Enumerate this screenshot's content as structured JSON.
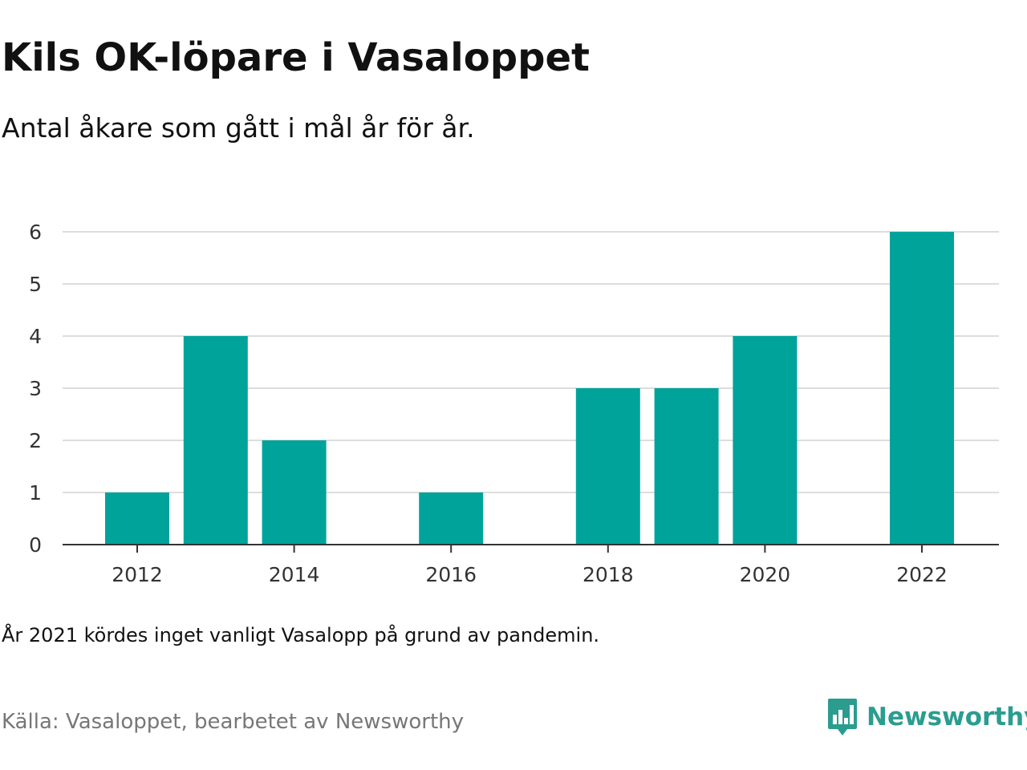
{
  "header": {
    "title": "Kils OK-löpare i Vasaloppet",
    "subtitle": "Antal åkare som gått i mål år för år."
  },
  "footer": {
    "note": "År 2021 kördes inget vanligt Vasalopp på grund av pandemin.",
    "source": "Källa: Vasaloppet, bearbetet av Newsworthy",
    "logo_text": "Newsworthy",
    "logo_icon": "bar-chart-speech-bubble-icon"
  },
  "colors": {
    "bar": "#00a39a",
    "grid": "#dddddd",
    "axis": "#333333",
    "brand": "#2a9d8f"
  },
  "chart_data": {
    "type": "bar",
    "title": "Kils OK-löpare i Vasaloppet",
    "subtitle": "Antal åkare som gått i mål år för år.",
    "x": [
      2012,
      2013,
      2014,
      2015,
      2016,
      2017,
      2018,
      2019,
      2020,
      2021,
      2022
    ],
    "values": [
      1,
      4,
      2,
      0,
      1,
      0,
      3,
      3,
      4,
      null,
      6
    ],
    "xticks": [
      "2012",
      "2014",
      "2016",
      "2018",
      "2020",
      "2022"
    ],
    "yticks": [
      0,
      1,
      2,
      3,
      4,
      5,
      6
    ],
    "ylim": [
      0,
      6
    ],
    "xlabel": "",
    "ylabel": "",
    "grid": true
  }
}
